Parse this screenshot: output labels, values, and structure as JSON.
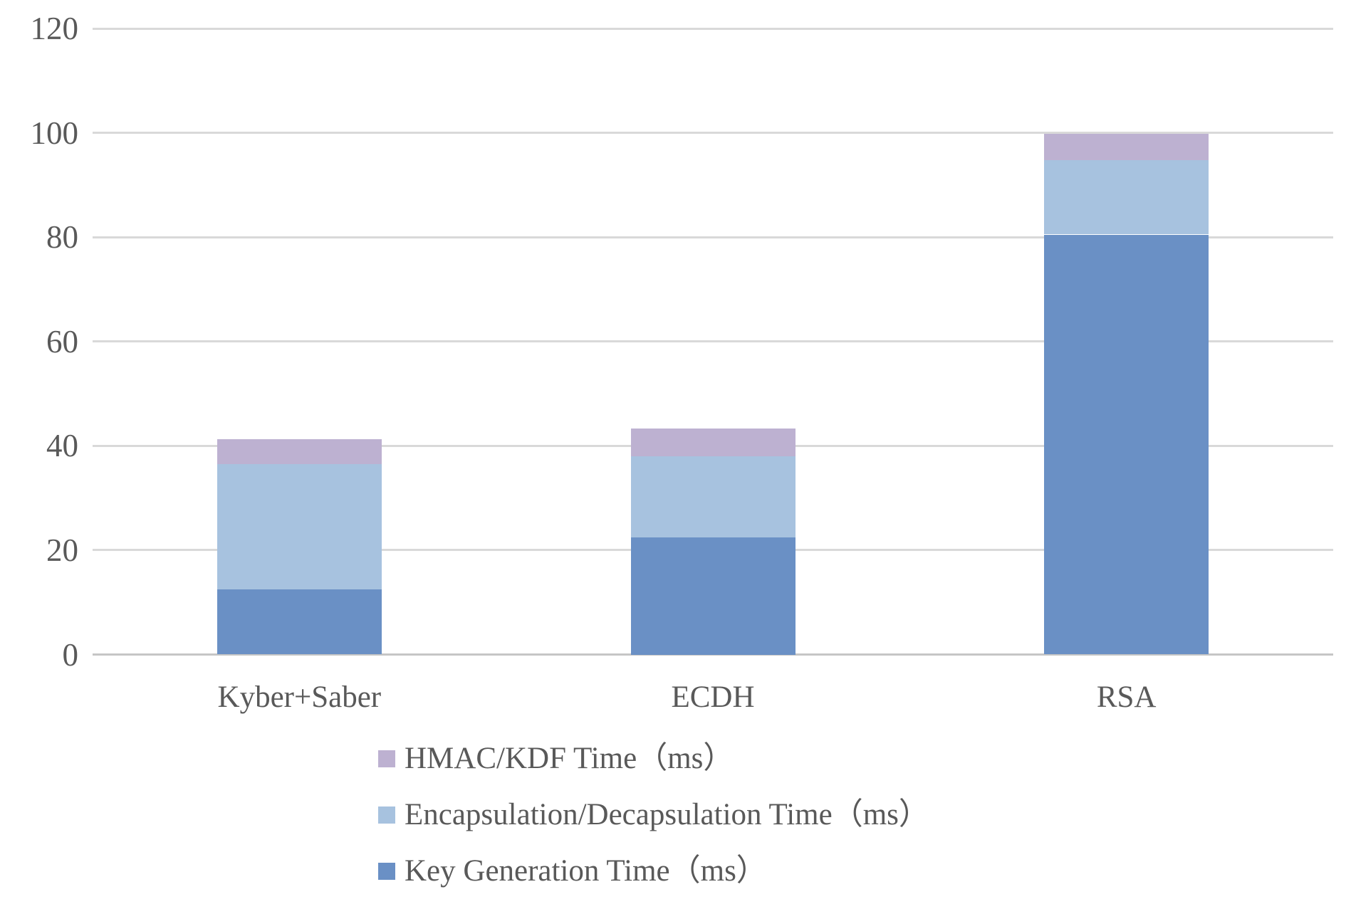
{
  "chart_data": {
    "type": "bar",
    "variant": "stacked-vertical",
    "title": "",
    "xlabel": "",
    "ylabel": "",
    "categories": [
      "Kyber+Saber",
      "ECDH",
      "RSA"
    ],
    "series": [
      {
        "name": "Key Generation Time（ms）",
        "color": "#6a90c5",
        "values": [
          12.5,
          22.5,
          80.5
        ]
      },
      {
        "name": "Encapsulation/Decapsulation Time（ms）",
        "color": "#a7c2df",
        "values": [
          24.0,
          15.5,
          14.3
        ]
      },
      {
        "name": "HMAC/KDF Time（ms）",
        "color": "#bdb1d1",
        "values": [
          4.8,
          5.3,
          5.0
        ]
      }
    ],
    "stack_totals": [
      41.3,
      43.3,
      99.8
    ],
    "ylim": [
      0,
      120
    ],
    "yticks": [
      0,
      20,
      40,
      60,
      80,
      100,
      120
    ],
    "grid": true,
    "gridline_color": "#d9d9d9",
    "baseline_color": "#c6c6c6",
    "legend_position": "bottom-left"
  },
  "legend": {
    "items": [
      {
        "label": "HMAC/KDF Time（ms）",
        "color": "#bdb1d1"
      },
      {
        "label": "Encapsulation/Decapsulation Time（ms）",
        "color": "#a7c2df"
      },
      {
        "label": "Key Generation Time（ms）",
        "color": "#6a90c5"
      }
    ]
  },
  "colors": {
    "background": "#ffffff",
    "text": "#595959",
    "key_generation": "#6a90c5",
    "encapsulation_decapsulation": "#a7c2df",
    "hmac_kdf": "#bdb1d1",
    "gridline": "#d9d9d9"
  }
}
